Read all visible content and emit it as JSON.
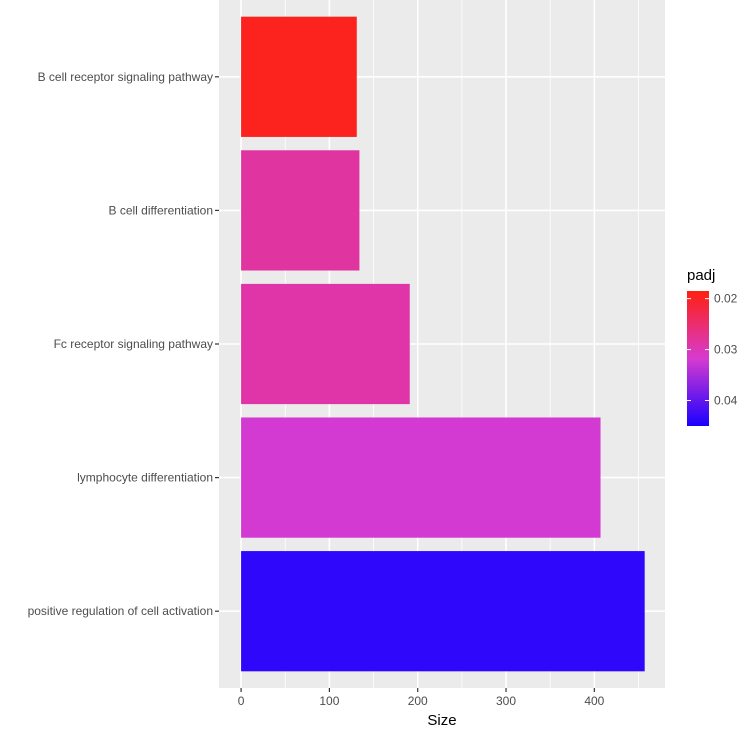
{
  "chart_data": {
    "type": "bar",
    "orientation": "horizontal",
    "categories": [
      "B cell receptor signaling pathway",
      "B cell differentiation",
      "Fc receptor signaling pathway",
      "lymphocyte differentiation",
      "positive regulation of cell activation"
    ],
    "values": [
      131,
      134,
      191,
      407,
      457
    ],
    "padj": [
      0.0195,
      0.0285,
      0.029,
      0.032,
      0.0435
    ],
    "xlabel": "Size",
    "ylabel": "",
    "xlim": [
      -25,
      480
    ],
    "xticks": [
      0,
      100,
      200,
      300,
      400
    ],
    "grid": true,
    "legend": {
      "title": "padj",
      "position": "right",
      "min": 0.0185,
      "max": 0.045,
      "ticks": [
        0.02,
        0.03,
        0.04
      ],
      "tick_labels": [
        "0.02",
        "0.03",
        "0.04"
      ],
      "color_low": "#ff2010",
      "color_mid": "#d63bd0",
      "color_high": "#1a00ff"
    },
    "panel_background": "#ebebeb",
    "gridline_color": "#ffffff"
  }
}
